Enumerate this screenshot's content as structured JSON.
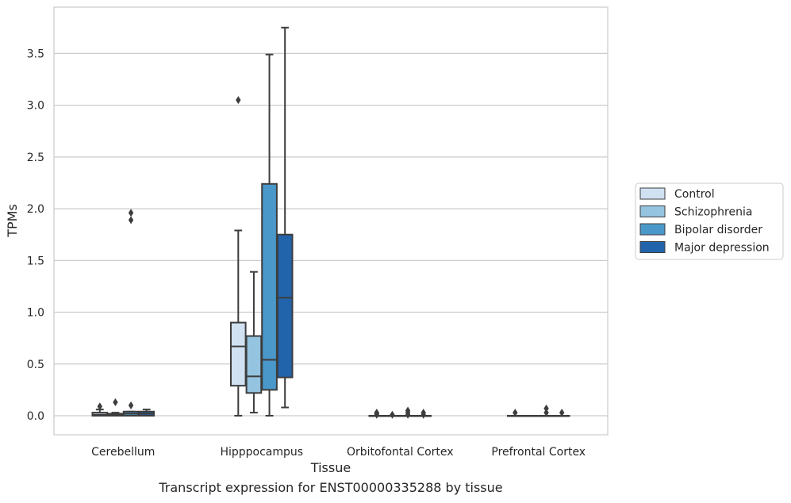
{
  "chart_data": {
    "type": "boxplot",
    "title": "",
    "caption": "Transcript expression for ENST00000335288 by tissue",
    "xlabel": "Tissue",
    "ylabel": "TPMs",
    "ylim": [
      -0.18,
      3.9
    ],
    "yticks": [
      0.0,
      0.5,
      1.0,
      1.5,
      2.0,
      2.5,
      3.0,
      3.5
    ],
    "ytick_labels": [
      "0.0",
      "0.5",
      "1.0",
      "1.5",
      "2.0",
      "2.5",
      "3.0",
      "3.5"
    ],
    "grid": "horizontal",
    "legend_position": "right",
    "categories": [
      "Cerebellum",
      "Hipppocampus",
      "Orbitofontal Cortex",
      "Prefrontal Cortex"
    ],
    "series": [
      {
        "name": "Control",
        "color": "#d0e1f2",
        "boxes": [
          {
            "whislo": 0.0,
            "q1": 0.0,
            "med": 0.01,
            "q3": 0.03,
            "whishi": 0.06,
            "fliers": [
              0.09
            ]
          },
          {
            "whislo": 0.0,
            "q1": 0.29,
            "med": 0.67,
            "q3": 0.9,
            "whishi": 1.79,
            "fliers": [
              3.05
            ]
          },
          {
            "whislo": 0.0,
            "q1": 0.0,
            "med": 0.0,
            "q3": 0.0,
            "whishi": 0.0,
            "fliers": [
              0.01,
              0.02,
              0.03
            ]
          },
          {
            "whislo": 0.0,
            "q1": 0.0,
            "med": 0.0,
            "q3": 0.0,
            "whishi": 0.0,
            "fliers": [
              0.03
            ]
          }
        ]
      },
      {
        "name": "Schizophrenia",
        "color": "#94c4df",
        "boxes": [
          {
            "whislo": 0.0,
            "q1": 0.0,
            "med": 0.01,
            "q3": 0.02,
            "whishi": 0.03,
            "fliers": [
              0.13
            ]
          },
          {
            "whislo": 0.03,
            "q1": 0.22,
            "med": 0.38,
            "q3": 0.77,
            "whishi": 1.39,
            "fliers": []
          },
          {
            "whislo": 0.0,
            "q1": 0.0,
            "med": 0.0,
            "q3": 0.0,
            "whishi": 0.0,
            "fliers": [
              0.01
            ]
          },
          {
            "whislo": 0.0,
            "q1": 0.0,
            "med": 0.0,
            "q3": 0.0,
            "whishi": 0.0,
            "fliers": []
          }
        ]
      },
      {
        "name": "Bipolar disorder",
        "color": "#4a98c9",
        "boxes": [
          {
            "whislo": 0.0,
            "q1": 0.0,
            "med": 0.02,
            "q3": 0.04,
            "whishi": 0.04,
            "fliers": [
              0.1,
              1.89,
              1.96
            ]
          },
          {
            "whislo": 0.0,
            "q1": 0.25,
            "med": 0.54,
            "q3": 2.24,
            "whishi": 3.49,
            "fliers": []
          },
          {
            "whislo": 0.0,
            "q1": 0.0,
            "med": 0.0,
            "q3": 0.0,
            "whishi": 0.0,
            "fliers": [
              0.01,
              0.03,
              0.05
            ]
          },
          {
            "whislo": 0.0,
            "q1": 0.0,
            "med": 0.0,
            "q3": 0.0,
            "whishi": 0.0,
            "fliers": [
              0.03,
              0.07
            ]
          }
        ]
      },
      {
        "name": "Major depression",
        "color": "#2264ab",
        "boxes": [
          {
            "whislo": 0.0,
            "q1": 0.0,
            "med": 0.02,
            "q3": 0.04,
            "whishi": 0.06,
            "fliers": []
          },
          {
            "whislo": 0.08,
            "q1": 0.37,
            "med": 1.14,
            "q3": 1.75,
            "whishi": 3.75,
            "fliers": []
          },
          {
            "whislo": 0.0,
            "q1": 0.0,
            "med": 0.0,
            "q3": 0.0,
            "whishi": 0.0,
            "fliers": [
              0.01,
              0.03
            ]
          },
          {
            "whislo": 0.0,
            "q1": 0.0,
            "med": 0.0,
            "q3": 0.0,
            "whishi": 0.0,
            "fliers": [
              0.03
            ]
          }
        ]
      }
    ]
  }
}
